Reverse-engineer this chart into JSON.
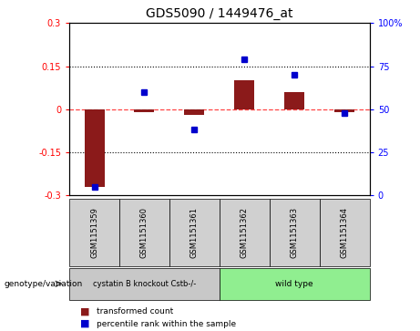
{
  "title": "GDS5090 / 1449476_at",
  "samples": [
    "GSM1151359",
    "GSM1151360",
    "GSM1151361",
    "GSM1151362",
    "GSM1151363",
    "GSM1151364"
  ],
  "red_bars": [
    -0.27,
    -0.01,
    -0.02,
    0.1,
    0.06,
    -0.01
  ],
  "blue_dots": [
    0.05,
    0.6,
    0.38,
    0.79,
    0.7,
    0.48
  ],
  "ylim": [
    -0.3,
    0.3
  ],
  "yticks_left": [
    -0.3,
    -0.15,
    0,
    0.15,
    0.3
  ],
  "yticks_right": [
    0,
    25,
    50,
    75,
    100
  ],
  "group1_label": "cystatin B knockout Cstb-/-",
  "group2_label": "wild type",
  "group1_color": "#c8c8c8",
  "group2_color": "#90EE90",
  "sample_box_color": "#d0d0d0",
  "bar_color": "#8B1A1A",
  "dot_color": "#0000CD",
  "hline_color": "#FF4444",
  "background_color": "#ffffff",
  "genotype_label": "genotype/variation",
  "legend1": "transformed count",
  "legend2": "percentile rank within the sample"
}
